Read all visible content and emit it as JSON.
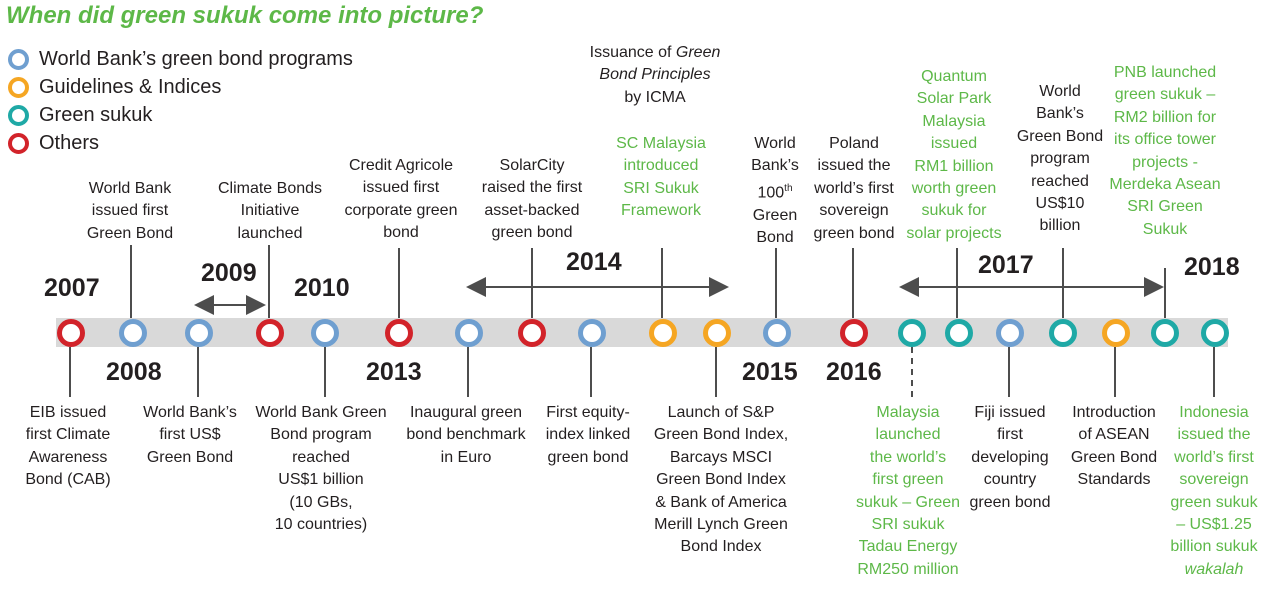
{
  "title": "When did green sukuk come into picture?",
  "colors": {
    "world_bank": "#6f9fd0",
    "guidelines": "#f5a623",
    "green_sukuk": "#1fa9a6",
    "others": "#d2232a",
    "green_text": "#5db848",
    "band": "#d9d9d9"
  },
  "legend": [
    {
      "label": "World Bank’s green bond programs",
      "color": "#6f9fd0"
    },
    {
      "label": "Guidelines & Indices",
      "color": "#f5a623"
    },
    {
      "label": "Green sukuk",
      "color": "#1fa9a6"
    },
    {
      "label": "Others",
      "color": "#d2232a"
    }
  ],
  "years": {
    "y2007": "2007",
    "y2008": "2008",
    "y2009": "2009",
    "y2010": "2010",
    "y2013": "2013",
    "y2014": "2014",
    "y2015": "2015",
    "y2016": "2016",
    "y2017": "2017",
    "y2018": "2018"
  },
  "events_above": {
    "world_bank_green_bond": "World Bank\nissued first\nGreen Bond",
    "climate_bonds": "Climate Bonds\nInitiative\nlaunched",
    "credit_agricole": "Credit Agricole\nissued first\ncorporate green\nbond",
    "solarcity": "SolarCity\nraised the first\nasset-backed\ngreen bond",
    "icma_line1": "Issuance of ",
    "icma_italic1": "Green",
    "icma_italic2": "Bond Principles",
    "icma_line3": "by ICMA",
    "sc_malaysia": "SC Malaysia\nintroduced\nSRI Sukuk\nFramework",
    "wb_100_line1": "World\nBank’s\n100",
    "wb_100_sup": "th",
    "wb_100_line2": "Green\nBond",
    "poland": "Poland\nissued the\nworld’s first\nsovereign\ngreen bond",
    "quantum": "Quantum\nSolar Park\nMalaysia\nissued\nRM1 billion\nworth green\nsukuk for\nsolar projects",
    "wb_us10": "World\nBank’s\nGreen Bond\nprogram\nreached\nUS$10\nbillion",
    "pnb": "PNB launched\ngreen sukuk –\nRM2 billion for\nits office tower\nprojects -\nMerdeka Asean\nSRI Green\nSukuk"
  },
  "events_below": {
    "eib": "EIB issued\nfirst Climate\nAwareness\nBond (CAB)",
    "wb_usd": "World Bank’s\nfirst US$\nGreen Bond",
    "wb_1b": "World Bank Green\nBond program\nreached\nUS$1 billion\n(10 GBs,\n10 countries)",
    "euro": "Inaugural green\nbond benchmark\nin Euro",
    "equity": "First equity-\nindex linked\ngreen bond",
    "sp": "Launch of S&P\nGreen Bond Index,\nBarcays MSCI\nGreen Bond Index\n& Bank of America\nMerill Lynch Green\nBond Index",
    "malaysia": "Malaysia\nlaunched\nthe world’s\nfirst green\nsukuk – Green\nSRI sukuk\nTadau Energy\nRM250 million",
    "fiji": "Fiji issued\nfirst\ndeveloping\ncountry\ngreen bond",
    "asean": "Introduction\nof ASEAN\nGreen Bond\nStandards",
    "indonesia": "Indonesia\nissued the\nworld’s first\nsovereign\ngreen sukuk\n– US$1.25\nbillion sukuk",
    "indonesia_italic": "wakalah"
  }
}
